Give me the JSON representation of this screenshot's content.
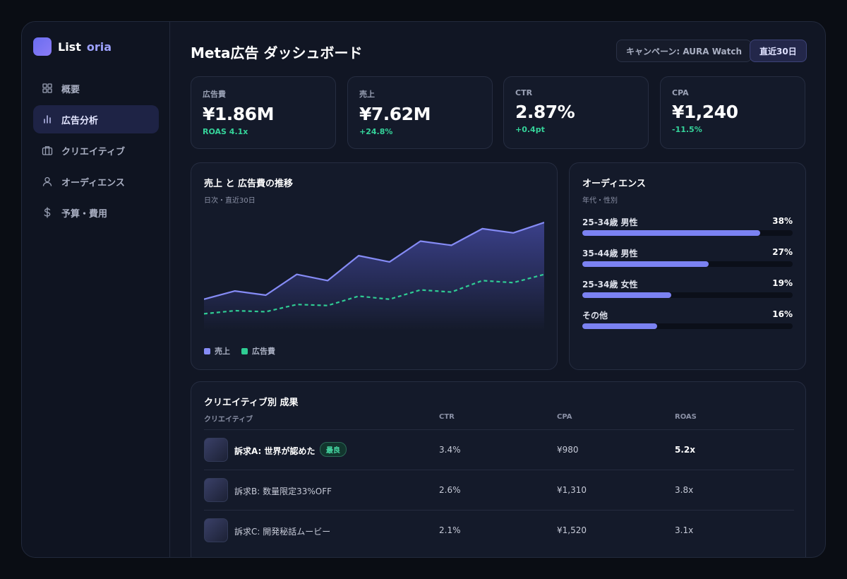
{
  "brand": {
    "name_a": "List",
    "name_b": "oria"
  },
  "sidebar": {
    "items": [
      {
        "label": "概要",
        "icon": "grid-icon"
      },
      {
        "label": "広告分析",
        "icon": "bar-chart-icon",
        "active": true
      },
      {
        "label": "クリエイティブ",
        "icon": "briefcase-icon"
      },
      {
        "label": "オーディエンス",
        "icon": "user-icon"
      },
      {
        "label": "予算・費用",
        "icon": "dollar-icon"
      }
    ]
  },
  "header": {
    "title": "Meta広告 ダッシュボード",
    "campaign_chip": "キャンペーン: AURA Watch",
    "range_chip": "直近30日"
  },
  "kpis": [
    {
      "label": "広告費",
      "value": "¥1.86M",
      "delta": "ROAS 4.1x"
    },
    {
      "label": "売上",
      "value": "¥7.62M",
      "delta": "+24.8%"
    },
    {
      "label": "CTR",
      "value": "2.87%",
      "delta": "+0.4pt"
    },
    {
      "label": "CPA",
      "value": "¥1,240",
      "delta": "-11.5%"
    }
  ],
  "trend": {
    "title": "売上 と 広告費の推移",
    "subtitle": "日次・直近30日",
    "legend": {
      "sales": "売上",
      "spend": "広告費"
    }
  },
  "chart_data": {
    "type": "area",
    "title": "売上 と 広告費の推移",
    "subtitle": "日次・直近30日",
    "x": [
      1,
      2,
      3,
      4,
      5,
      6,
      7,
      8,
      9,
      10,
      11,
      12
    ],
    "ylim": [
      0,
      100
    ],
    "grid": false,
    "legend_position": "bottom-left",
    "series": [
      {
        "name": "売上",
        "style": "area-line",
        "color": "#858bf5",
        "values": [
          28,
          36,
          32,
          52,
          46,
          70,
          64,
          84,
          80,
          96,
          92,
          102
        ]
      },
      {
        "name": "広告費",
        "style": "dashed-line",
        "color": "#2fcc93",
        "values": [
          14,
          17,
          16,
          23,
          22,
          31,
          28,
          37,
          35,
          46,
          44,
          52
        ]
      }
    ]
  },
  "audience": {
    "title": "オーディエンス",
    "subtitle": "年代・性別",
    "rows": [
      {
        "label": "25-34歳 男性",
        "pct_text": "38%",
        "pct": 38
      },
      {
        "label": "35-44歳 男性",
        "pct_text": "27%",
        "pct": 27
      },
      {
        "label": "25-34歳 女性",
        "pct_text": "19%",
        "pct": 19
      },
      {
        "label": "その他",
        "pct_text": "16%",
        "pct": 16
      }
    ]
  },
  "creatives": {
    "title": "クリエイティブ別 成果",
    "headers": {
      "name": "クリエイティブ",
      "ctr": "CTR",
      "cpa": "CPA",
      "roas": "ROAS"
    },
    "best_badge": "最良",
    "rows": [
      {
        "name": "訴求A: 世界が認めた",
        "ctr": "3.4%",
        "cpa": "¥980",
        "roas": "5.2x",
        "best": true
      },
      {
        "name": "訴求B: 数量限定33%OFF",
        "ctr": "2.6%",
        "cpa": "¥1,310",
        "roas": "3.8x"
      },
      {
        "name": "訴求C: 開発秘話ムービー",
        "ctr": "2.1%",
        "cpa": "¥1,520",
        "roas": "3.1x"
      }
    ]
  },
  "colors": {
    "accent": "#7b82f2",
    "positive": "#35d39a",
    "sales_line": "#858bf5",
    "spend_line": "#2fcc93"
  }
}
